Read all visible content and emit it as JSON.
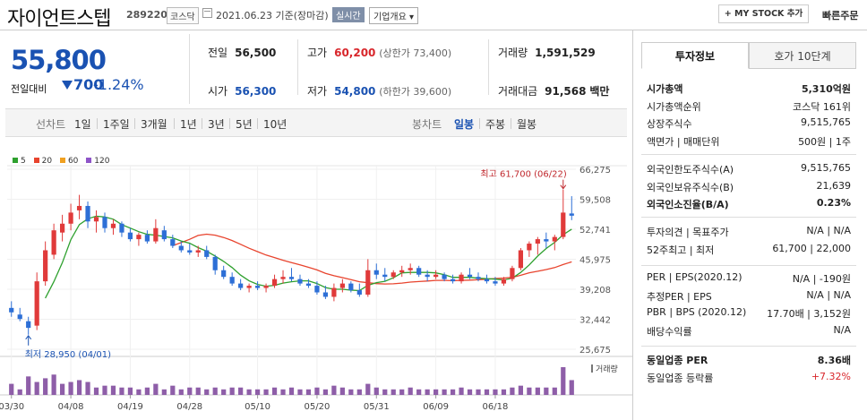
{
  "header": {
    "title": "자이언트스텝",
    "code": "289220",
    "market": "코스닥",
    "date": "2021.06.23",
    "date_suffix": "기준(장마감)",
    "realtime": "실시간",
    "company_info": "기업개요",
    "mystock": "+ MY STOCK 추가",
    "quick_order": "빠른주문"
  },
  "quote": {
    "price": "55,800",
    "change_label": "전일대비",
    "change_value": "700",
    "change_pct": "-1.24%",
    "prev_close_label": "전일",
    "prev_close": "56,500",
    "high_label": "고가",
    "high": "60,200",
    "upper_limit": "(상한가 73,400)",
    "volume_label": "거래량",
    "volume": "1,591,529",
    "open_label": "시가",
    "open": "56,300",
    "low_label": "저가",
    "low": "54,800",
    "lower_limit": "(하한가 39,600)",
    "amount_label": "거래대금",
    "amount": "91,568",
    "amount_unit": "백만"
  },
  "toolbar": {
    "line_label": "선차트",
    "line_periods": [
      "1일",
      "1주일",
      "3개월",
      "1년",
      "3년",
      "5년",
      "10년"
    ],
    "candle_label": "봉차트",
    "candle_periods": [
      "일봉",
      "주봉",
      "월봉"
    ],
    "candle_selected": "일봉"
  },
  "chart_data": {
    "type": "candlestick",
    "ma_legend": [
      {
        "name": "5",
        "color": "#2ea02e"
      },
      {
        "name": "20",
        "color": "#e8442e"
      },
      {
        "name": "60",
        "color": "#f0a020"
      },
      {
        "name": "120",
        "color": "#8e54c8"
      }
    ],
    "y_ticks": [
      "66,275",
      "59,508",
      "52,741",
      "45,975",
      "39,208",
      "32,442",
      "25,675"
    ],
    "ylim": [
      25675,
      66275
    ],
    "x_ticks": [
      "03/30",
      "04/08",
      "04/19",
      "04/28",
      "05/10",
      "05/20",
      "05/31",
      "06/09",
      "06/18"
    ],
    "x_tick_index": [
      0,
      7,
      14,
      21,
      29,
      36,
      43,
      50,
      57
    ],
    "max_annotation": "최고 61,700 (06/22)",
    "min_annotation": "최저 28,950 (04/01)",
    "volume_label": "거래량",
    "candles": [
      [
        35000,
        36500,
        33000,
        34000
      ],
      [
        33500,
        35000,
        32000,
        32500
      ],
      [
        32000,
        33000,
        28950,
        30500
      ],
      [
        31000,
        43000,
        30000,
        41000
      ],
      [
        41000,
        50000,
        40000,
        48000
      ],
      [
        47000,
        54000,
        46000,
        52500
      ],
      [
        52000,
        56000,
        50000,
        54000
      ],
      [
        54000,
        58500,
        52500,
        56500
      ],
      [
        57000,
        60500,
        55000,
        58000
      ],
      [
        58000,
        59000,
        53000,
        54500
      ],
      [
        54500,
        57000,
        52000,
        55500
      ],
      [
        55500,
        56500,
        52000,
        53000
      ],
      [
        53000,
        55000,
        51500,
        54000
      ],
      [
        54000,
        54500,
        51000,
        52000
      ],
      [
        52000,
        53000,
        50000,
        50500
      ],
      [
        50500,
        52000,
        49000,
        51500
      ],
      [
        51500,
        52500,
        49500,
        50000
      ],
      [
        50000,
        55000,
        49500,
        53000
      ],
      [
        52500,
        53500,
        50000,
        50500
      ],
      [
        50500,
        51500,
        48500,
        49000
      ],
      [
        49000,
        50000,
        47500,
        48000
      ],
      [
        48000,
        49500,
        47000,
        47500
      ],
      [
        47500,
        49000,
        46500,
        48000
      ],
      [
        48000,
        49000,
        46000,
        46500
      ],
      [
        46500,
        47000,
        42500,
        43500
      ],
      [
        43500,
        44500,
        41500,
        42000
      ],
      [
        42000,
        43000,
        40000,
        40500
      ],
      [
        40500,
        41500,
        39000,
        39500
      ],
      [
        39500,
        40500,
        38500,
        40000
      ],
      [
        40000,
        41000,
        39000,
        39500
      ],
      [
        39500,
        40500,
        38500,
        40000
      ],
      [
        40000,
        42500,
        39500,
        41500
      ],
      [
        41500,
        43500,
        40500,
        42000
      ],
      [
        42000,
        44000,
        41000,
        41500
      ],
      [
        41500,
        42500,
        40000,
        40500
      ],
      [
        40500,
        41500,
        39500,
        40000
      ],
      [
        40000,
        41000,
        38000,
        38500
      ],
      [
        38500,
        40000,
        37000,
        37500
      ],
      [
        37500,
        40500,
        36500,
        39500
      ],
      [
        39500,
        41500,
        38500,
        40500
      ],
      [
        40500,
        41000,
        38500,
        39000
      ],
      [
        39000,
        40500,
        37500,
        38000
      ],
      [
        38000,
        46000,
        37500,
        43500
      ],
      [
        43500,
        45000,
        41500,
        42500
      ],
      [
        42500,
        44000,
        41000,
        42000
      ],
      [
        42000,
        43500,
        41500,
        43000
      ],
      [
        43000,
        44500,
        42000,
        43500
      ],
      [
        43500,
        45000,
        42500,
        44000
      ],
      [
        44000,
        44500,
        42000,
        42500
      ],
      [
        42500,
        43500,
        41000,
        42000
      ],
      [
        42000,
        43500,
        41500,
        42500
      ],
      [
        42500,
        43000,
        41000,
        41500
      ],
      [
        41500,
        42500,
        40500,
        41000
      ],
      [
        41000,
        43000,
        40500,
        42500
      ],
      [
        42500,
        44000,
        41500,
        42000
      ],
      [
        42000,
        43000,
        41000,
        41500
      ],
      [
        41500,
        42500,
        40500,
        41000
      ],
      [
        41000,
        42000,
        40000,
        40500
      ],
      [
        40500,
        42000,
        40000,
        41500
      ],
      [
        41500,
        44500,
        41000,
        44000
      ],
      [
        44000,
        48500,
        43500,
        48000
      ],
      [
        48000,
        50000,
        46500,
        49500
      ],
      [
        49500,
        51000,
        47000,
        50500
      ],
      [
        50500,
        52000,
        48500,
        50000
      ],
      [
        50000,
        51500,
        48000,
        51000
      ],
      [
        51000,
        61700,
        50500,
        56500
      ],
      [
        56300,
        60200,
        54800,
        55800
      ]
    ],
    "volumes": [
      6,
      3,
      10,
      7,
      9,
      11,
      6,
      7,
      8,
      7,
      4,
      5,
      5,
      4,
      4,
      3,
      4,
      6,
      3,
      5,
      3,
      4,
      4,
      3,
      4,
      3,
      4,
      4,
      3,
      3,
      3,
      4,
      3,
      4,
      3,
      3,
      4,
      3,
      5,
      4,
      3,
      3,
      6,
      4,
      3,
      3,
      3,
      4,
      3,
      3,
      3,
      3,
      3,
      4,
      3,
      3,
      3,
      3,
      3,
      4,
      5,
      4,
      4,
      4,
      4,
      15,
      8
    ]
  },
  "invest": {
    "tab_active": "투자정보",
    "tab_other": "호가 10단계",
    "rows1": [
      {
        "k": "시가총액",
        "v": "5,310억원",
        "bold": true
      },
      {
        "k": "시가총액순위",
        "v": "코스닥 161위"
      },
      {
        "k": "상장주식수",
        "v": "9,515,765"
      },
      {
        "k": "액면가 | 매매단위",
        "v": "500원 | 1주"
      }
    ],
    "rows2": [
      {
        "k": "외국인한도주식수(A)",
        "v": "9,515,765"
      },
      {
        "k": "외국인보유주식수(B)",
        "v": "21,639"
      },
      {
        "k": "외국인소진율(B/A)",
        "v": "0.23%",
        "bold": true
      }
    ],
    "rows3": [
      {
        "k": "투자의견 | 목표주가",
        "v": "N/A | N/A"
      },
      {
        "k": "52주최고 | 최저",
        "v": "61,700 | 22,000"
      }
    ],
    "rows4": [
      {
        "k": "PER | EPS(2020.12)",
        "v": "N/A | -190원"
      },
      {
        "k": "추정PER | EPS",
        "v": "N/A | N/A"
      },
      {
        "k": "PBR | BPS (2020.12)",
        "v": "17.70배 | 3,152원"
      },
      {
        "k": "배당수익률",
        "v": "N/A"
      }
    ],
    "rows5": [
      {
        "k": "동일업종 PER",
        "v": "8.36배",
        "bold": true
      },
      {
        "k": "동일업종 등락률",
        "v": "+7.32%",
        "red": true
      }
    ]
  }
}
